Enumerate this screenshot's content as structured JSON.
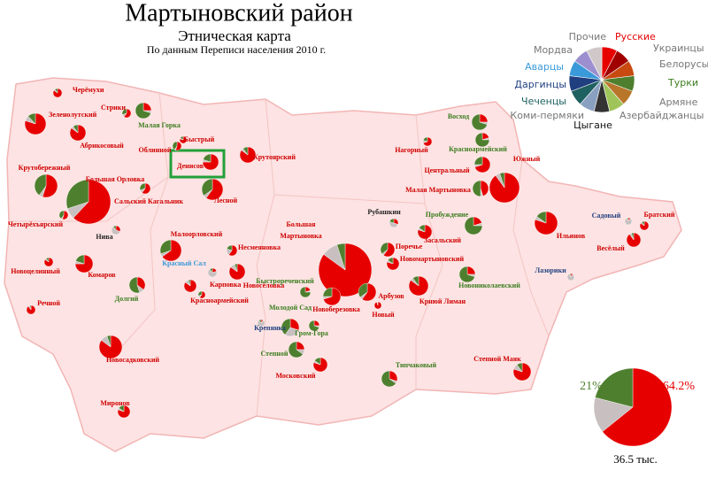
{
  "title": "Мартыновский район",
  "subtitle": "Этническая карта",
  "source": "По данным Переписи населения 2010 г.",
  "share_colors": {
    "russian": "#e60000",
    "turks": "#4e7f2e",
    "other": "#c8c0c0"
  },
  "legend": [
    {
      "name": "Русские",
      "color": "#e60000",
      "label_color": "#e60000"
    },
    {
      "name": "Украинцы",
      "color": "#a00000",
      "label_color": "#777777"
    },
    {
      "name": "Белорусы",
      "color": "#c84a10",
      "label_color": "#777777"
    },
    {
      "name": "Турки",
      "color": "#4e7f2e",
      "label_color": "#3a7d1e"
    },
    {
      "name": "Армяне",
      "color": "#b8762a",
      "label_color": "#777777"
    },
    {
      "name": "Азербайджанцы",
      "color": "#9fc45a",
      "label_color": "#777777"
    },
    {
      "name": "Цыгане",
      "color": "#333333",
      "label_color": "#111111"
    },
    {
      "name": "Коми-пермяки",
      "color": "#8aa0c0",
      "label_color": "#777777"
    },
    {
      "name": "Чеченцы",
      "color": "#1f6060",
      "label_color": "#1f6060"
    },
    {
      "name": "Даргинцы",
      "color": "#1f3f7f",
      "label_color": "#1f3f7f"
    },
    {
      "name": "Аварцы",
      "color": "#3a9ad9",
      "label_color": "#3a9ad9"
    },
    {
      "name": "Мордва",
      "color": "#9b8fd0",
      "label_color": "#777777"
    },
    {
      "name": "Прочие",
      "color": "#d0c8c8",
      "label_color": "#777777"
    }
  ],
  "settlements": [
    {
      "name": "Черёмухи",
      "population": 250,
      "russian": 85,
      "turks": 10,
      "other": 5,
      "color": "#d00000"
    },
    {
      "name": "Зеленолутский",
      "population": 1440,
      "russian": 80,
      "turks": 12,
      "other": 8,
      "color": "#d00000"
    },
    {
      "name": "Стрики",
      "population": 250,
      "russian": 60,
      "turks": 30,
      "other": 10,
      "color": "#d00000"
    },
    {
      "name": "Малая Горка",
      "population": 810,
      "russian": 25,
      "turks": 70,
      "other": 5,
      "color": "#3a7d1e"
    },
    {
      "name": "Абрикосовый",
      "population": 810,
      "russian": 85,
      "turks": 10,
      "other": 5,
      "color": "#d00000"
    },
    {
      "name": "Быстрый",
      "population": 160,
      "russian": 80,
      "turks": 15,
      "other": 5,
      "color": "#d00000"
    },
    {
      "name": "Облинной",
      "population": 250,
      "russian": 55,
      "turks": 40,
      "other": 5,
      "color": "#d00000"
    },
    {
      "name": "Денисов",
      "population": 810,
      "russian": 75,
      "turks": 20,
      "other": 5,
      "color": "#d00000"
    },
    {
      "name": "Крутоярский",
      "population": 810,
      "russian": 85,
      "turks": 10,
      "other": 5,
      "color": "#d00000"
    },
    {
      "name": "Крутобережный",
      "population": 1690,
      "russian": 55,
      "turks": 40,
      "other": 5,
      "color": "#d00000"
    },
    {
      "name": "Большая Орловка",
      "population": 6250,
      "russian": 62,
      "turks": 30,
      "other": 8,
      "color": "#d00000"
    },
    {
      "name": "Лесной",
      "population": 1440,
      "russian": 60,
      "turks": 35,
      "other": 5,
      "color": "#d00000"
    },
    {
      "name": "Сальский Кагальник",
      "population": 360,
      "russian": 60,
      "turks": 30,
      "other": 10,
      "color": "#d00000"
    },
    {
      "name": "Четырёхъярский",
      "population": 250,
      "russian": 55,
      "turks": 40,
      "other": 5,
      "color": "#d00000"
    },
    {
      "name": "Нива",
      "population": 250,
      "russian": 30,
      "turks": 10,
      "other": 60,
      "color": "#222222"
    },
    {
      "name": "Малоорловский",
      "population": 1440,
      "russian": 65,
      "turks": 30,
      "other": 5,
      "color": "#d00000"
    },
    {
      "name": "Несмеяновка",
      "population": 360,
      "russian": 60,
      "turks": 20,
      "other": 20,
      "color": "#d00000"
    },
    {
      "name": "Красный Сал",
      "population": 250,
      "russian": 20,
      "turks": 10,
      "other": 70,
      "color": "#3a9ad9"
    },
    {
      "name": "Новосёловка",
      "population": 810,
      "russian": 85,
      "turks": 5,
      "other": 10,
      "color": "#d00000"
    },
    {
      "name": "Новоцелинный",
      "population": 250,
      "russian": 85,
      "turks": 10,
      "other": 5,
      "color": "#d00000"
    },
    {
      "name": "Комаров",
      "population": 1000,
      "russian": 75,
      "turks": 20,
      "other": 5,
      "color": "#d00000"
    },
    {
      "name": "Долгий",
      "population": 810,
      "russian": 35,
      "turks": 55,
      "other": 10,
      "color": "#3a7d1e"
    },
    {
      "name": "Карповка",
      "population": 490,
      "russian": 85,
      "turks": 5,
      "other": 10,
      "color": "#d00000"
    },
    {
      "name": "Красноармейский",
      "population": 160,
      "russian": 60,
      "turks": 30,
      "other": 10,
      "color": "#d00000"
    },
    {
      "name": "Речной",
      "population": 250,
      "russian": 90,
      "turks": 5,
      "other": 5,
      "color": "#d00000"
    },
    {
      "name": "Новосадковский",
      "population": 1690,
      "russian": 85,
      "turks": 5,
      "other": 10,
      "color": "#d00000"
    },
    {
      "name": "Миронов",
      "population": 490,
      "russian": 80,
      "turks": 15,
      "other": 5,
      "color": "#d00000"
    },
    {
      "name": "Большая Мартыновка",
      "population": 9000,
      "russian": 85,
      "turks": 5,
      "other": 10,
      "color": "#d00000"
    },
    {
      "name": "Быстрореченский",
      "population": 360,
      "russian": 20,
      "turks": 75,
      "other": 5,
      "color": "#3a7d1e"
    },
    {
      "name": "Молодой Сад",
      "population": 1000,
      "russian": 30,
      "turks": 40,
      "other": 30,
      "color": "#3a7d1e"
    },
    {
      "name": "Крепянка",
      "population": 160,
      "russian": 10,
      "turks": 10,
      "other": 80,
      "color": "#1f3f7f"
    },
    {
      "name": "Новоберезовка",
      "population": 1000,
      "russian": 70,
      "turks": 25,
      "other": 5,
      "color": "#d00000"
    },
    {
      "name": "Гром-Гора",
      "population": 360,
      "russian": 25,
      "turks": 70,
      "other": 5,
      "color": "#3a7d1e"
    },
    {
      "name": "Степной",
      "population": 810,
      "russian": 25,
      "turks": 65,
      "other": 10,
      "color": "#3a7d1e"
    },
    {
      "name": "Московский",
      "population": 640,
      "russian": 80,
      "turks": 15,
      "other": 5,
      "color": "#d00000"
    },
    {
      "name": "Рубашкин",
      "population": 250,
      "russian": 30,
      "turks": 20,
      "other": 50,
      "color": "#222222"
    },
    {
      "name": "Пробуждение",
      "population": 1000,
      "russian": 20,
      "turks": 75,
      "other": 5,
      "color": "#3a7d1e"
    },
    {
      "name": "Поречье",
      "population": 640,
      "russian": 60,
      "turks": 35,
      "other": 5,
      "color": "#d00000"
    },
    {
      "name": "Засальский",
      "population": 640,
      "russian": 80,
      "turks": 15,
      "other": 5,
      "color": "#d00000"
    },
    {
      "name": "Новомартыновский",
      "population": 490,
      "russian": 80,
      "turks": 15,
      "other": 5,
      "color": "#d00000"
    },
    {
      "name": "Арбузов",
      "population": 1000,
      "russian": 60,
      "turks": 35,
      "other": 5,
      "color": "#d00000"
    },
    {
      "name": "Новый",
      "population": 160,
      "russian": 95,
      "turks": 0,
      "other": 5,
      "color": "#d00000"
    },
    {
      "name": "Новониколаевский",
      "population": 810,
      "russian": 25,
      "turks": 70,
      "other": 5,
      "color": "#3a7d1e"
    },
    {
      "name": "Крнюй Лиман",
      "population": 1210,
      "russian": 85,
      "turks": 10,
      "other": 5,
      "color": "#d00000"
    },
    {
      "name": "Типчаковый",
      "population": 810,
      "russian": 30,
      "turks": 65,
      "other": 5,
      "color": "#3a7d1e"
    },
    {
      "name": "Степной Маяк",
      "population": 1000,
      "russian": 80,
      "turks": 10,
      "other": 10,
      "color": "#d00000"
    },
    {
      "name": "Восход",
      "population": 810,
      "russian": 25,
      "turks": 70,
      "other": 5,
      "color": "#3a7d1e"
    },
    {
      "name": "Нагорный",
      "population": 250,
      "russian": 70,
      "turks": 20,
      "other": 10,
      "color": "#d00000"
    },
    {
      "name": "Красноармейский",
      "population": 640,
      "russian": 20,
      "turks": 75,
      "other": 5,
      "color": "#3a7d1e"
    },
    {
      "name": "Центральный",
      "population": 810,
      "russian": 70,
      "turks": 25,
      "other": 5,
      "color": "#d00000"
    },
    {
      "name": "Южный",
      "population": 2890,
      "russian": 90,
      "turks": 5,
      "other": 5,
      "color": "#d00000"
    },
    {
      "name": "Малая Мартыновка",
      "population": 810,
      "russian": 45,
      "turks": 50,
      "other": 5,
      "color": "#d00000"
    },
    {
      "name": "Ильинов",
      "population": 1690,
      "russian": 80,
      "turks": 15,
      "other": 5,
      "color": "#d00000"
    },
    {
      "name": "Садовый",
      "population": 160,
      "russian": 10,
      "turks": 5,
      "other": 85,
      "color": "#1f3f7f"
    },
    {
      "name": "Братский",
      "population": 250,
      "russian": 85,
      "turks": 10,
      "other": 5,
      "color": "#d00000"
    },
    {
      "name": "Весёлый",
      "population": 640,
      "russian": 90,
      "turks": 5,
      "other": 5,
      "color": "#d00000"
    },
    {
      "name": "Лазорики",
      "population": 160,
      "russian": 10,
      "turks": 5,
      "other": 85,
      "color": "#1f3f7f"
    }
  ],
  "total": {
    "russian": 64.2,
    "russian_label": "64.2%",
    "turks": 21,
    "turks_label": "21%",
    "other": 14.8,
    "population_label": "36.5 тыс."
  }
}
